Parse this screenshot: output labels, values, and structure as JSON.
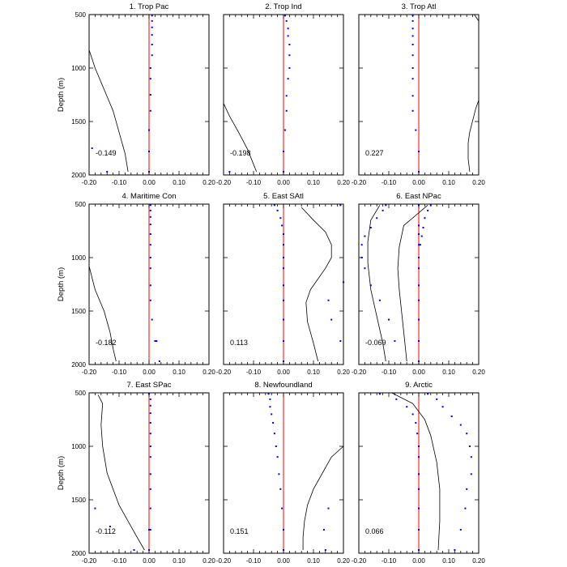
{
  "colors": {
    "zero_line": "#ff0000",
    "markers": "#0000ff",
    "curve": "#000000",
    "axis": "#000000"
  },
  "shared_axes": {
    "xlim": [
      -0.2,
      0.2
    ],
    "xticks": [
      -0.2,
      -0.1,
      0.0,
      0.1,
      0.2
    ],
    "xtick_labels": [
      "-0.20",
      "-0.10",
      "0.00",
      "0.10",
      "0.20"
    ],
    "ylim": [
      2000,
      500
    ],
    "yticks": [
      500,
      1000,
      1500,
      2000
    ],
    "ytick_labels": [
      "500",
      "1000",
      "1500",
      "2000"
    ],
    "ylabel": "Depth (m)"
  },
  "chart_data": [
    {
      "type": "line",
      "title": "1. Trop Pac",
      "annotation": "-0.149",
      "markers": {
        "x": [
          0.01,
          0.01,
          0.01,
          0.01,
          0.01,
          0.01,
          0.005,
          0.005,
          0.005,
          0.005,
          0.0,
          0.0,
          -0.19,
          -0.14,
          0.0
        ],
        "y": [
          510,
          560,
          620,
          690,
          780,
          880,
          1000,
          1100,
          1250,
          1400,
          1580,
          1780,
          1750,
          1970,
          1970
        ]
      },
      "curve": {
        "x": [
          -0.205,
          -0.18,
          -0.15,
          -0.12,
          -0.1,
          -0.08,
          -0.07
        ],
        "y": [
          830,
          1000,
          1200,
          1400,
          1600,
          1800,
          1970
        ]
      }
    },
    {
      "type": "line",
      "title": "2. Trop Ind",
      "annotation": "-0.198",
      "markers": {
        "x": [
          0.005,
          0.01,
          0.015,
          0.015,
          0.02,
          0.02,
          0.02,
          0.015,
          0.01,
          0.01,
          0.005,
          0.0,
          0.0,
          -0.18
        ],
        "y": [
          510,
          560,
          630,
          700,
          780,
          880,
          1000,
          1100,
          1260,
          1400,
          1580,
          1780,
          1970,
          1970
        ]
      },
      "curve": {
        "x": [
          -0.205,
          -0.18,
          -0.15,
          -0.12,
          -0.1,
          -0.09
        ],
        "y": [
          1330,
          1450,
          1600,
          1760,
          1900,
          1970
        ]
      }
    },
    {
      "type": "line",
      "title": "3. Trop Atl",
      "annotation": "0.227",
      "markers": {
        "x": [
          -0.02,
          -0.02,
          -0.02,
          -0.02,
          -0.02,
          -0.02,
          -0.02,
          -0.02,
          -0.02,
          -0.02,
          -0.01,
          0.0,
          0.0
        ],
        "y": [
          510,
          560,
          630,
          700,
          780,
          880,
          1000,
          1100,
          1260,
          1400,
          1580,
          1780,
          1970
        ]
      },
      "curve_segments": [
        {
          "x": [
            0.185,
            0.205
          ],
          "y": [
            500,
            560
          ]
        },
        {
          "x": [
            0.205,
            0.19,
            0.17,
            0.165,
            0.165,
            0.17
          ],
          "y": [
            1300,
            1380,
            1600,
            1700,
            1850,
            1970
          ]
        }
      ]
    },
    {
      "type": "line",
      "title": "4. Maritime Con",
      "annotation": "-0.182",
      "markers": {
        "x": [
          0.005,
          0.005,
          0.005,
          0.005,
          0.005,
          0.005,
          0.005,
          0.005,
          0.005,
          0.005,
          0.01,
          0.02,
          0.025,
          0.035
        ],
        "y": [
          510,
          560,
          620,
          690,
          780,
          880,
          1000,
          1100,
          1260,
          1400,
          1580,
          1780,
          1780,
          1970
        ]
      },
      "curve": {
        "x": [
          -0.205,
          -0.18,
          -0.15,
          -0.13,
          -0.12,
          -0.11
        ],
        "y": [
          1080,
          1300,
          1500,
          1700,
          1850,
          1970
        ]
      }
    },
    {
      "type": "line",
      "title": "5. East SAtl",
      "annotation": "0.113",
      "markers": {
        "x": [
          -0.03,
          -0.02,
          -0.01,
          -0.005,
          0.0,
          0.0,
          0.0,
          0.0,
          0.0,
          0.0,
          0.0,
          0.0,
          0.0,
          0.0,
          0.19,
          0.2,
          0.15,
          0.16,
          0.19
        ],
        "y": [
          510,
          560,
          630,
          700,
          780,
          880,
          1000,
          1100,
          1260,
          1400,
          1580,
          1780,
          1970,
          1970,
          510,
          1230,
          1400,
          1580,
          1780
        ]
      },
      "curve": {
        "x": [
          0.06,
          0.1,
          0.14,
          0.16,
          0.16,
          0.14,
          0.09,
          0.075,
          0.08,
          0.1,
          0.115
        ],
        "y": [
          530,
          650,
          760,
          880,
          1000,
          1100,
          1300,
          1420,
          1600,
          1800,
          1970
        ]
      }
    },
    {
      "type": "line",
      "title": "6. East NPac",
      "annotation": "-0.069",
      "markers": {
        "x": [
          -0.11,
          -0.12,
          -0.14,
          -0.16,
          -0.18,
          -0.19,
          -0.19,
          -0.18,
          -0.16,
          -0.13,
          -0.1,
          -0.08,
          0.0,
          0.0,
          0.0,
          0.0,
          0.0,
          0.0,
          0.0,
          0.0,
          0.0,
          0.0,
          0.0,
          0.04,
          0.03,
          0.02,
          0.015,
          0.01,
          0.005
        ],
        "y": [
          510,
          560,
          630,
          720,
          800,
          880,
          1000,
          1100,
          1260,
          1400,
          1580,
          1780,
          1780,
          1970,
          510,
          1000,
          1100,
          1260,
          1400,
          1580,
          880,
          780,
          700,
          510,
          560,
          630,
          720,
          800,
          880
        ]
      },
      "curve_segments": [
        {
          "x": [
            0.03,
            -0.05,
            -0.065,
            -0.07,
            -0.065,
            -0.05,
            -0.04
          ],
          "y": [
            510,
            700,
            900,
            1100,
            1300,
            1700,
            1970
          ]
        },
        {
          "x": [
            -0.13,
            -0.16,
            -0.17,
            -0.17,
            -0.16,
            -0.14,
            -0.12,
            -0.11
          ],
          "y": [
            510,
            650,
            850,
            1050,
            1300,
            1550,
            1800,
            1970
          ]
        }
      ]
    },
    {
      "type": "line",
      "title": "7. East SPac",
      "annotation": "-0.112",
      "markers": {
        "x": [
          0.0,
          0.005,
          0.005,
          0.005,
          0.005,
          0.005,
          0.005,
          0.005,
          0.005,
          0.005,
          0.005,
          0.005,
          0.0,
          -0.18,
          -0.13,
          -0.05,
          0.0
        ],
        "y": [
          510,
          560,
          620,
          690,
          780,
          880,
          1000,
          1100,
          1260,
          1400,
          1580,
          1780,
          1780,
          1580,
          1750,
          1970,
          1970
        ]
      },
      "curve": {
        "x": [
          -0.17,
          -0.155,
          -0.16,
          -0.155,
          -0.14,
          -0.12,
          -0.1,
          -0.07,
          -0.04,
          -0.015
        ],
        "y": [
          520,
          600,
          800,
          1000,
          1250,
          1400,
          1550,
          1700,
          1850,
          1970
        ]
      }
    },
    {
      "type": "line",
      "title": "8. Newfoundland",
      "annotation": "0.151",
      "markers": {
        "x": [
          -0.05,
          -0.045,
          -0.045,
          -0.04,
          -0.035,
          -0.03,
          -0.025,
          -0.02,
          -0.015,
          -0.01,
          -0.005,
          0.0,
          0.0,
          0.15,
          0.135,
          0.14,
          0.0
        ],
        "y": [
          510,
          560,
          630,
          700,
          780,
          880,
          1000,
          1100,
          1260,
          1400,
          1580,
          1780,
          1970,
          1580,
          1780,
          1970,
          1780
        ]
      },
      "curve": {
        "x": [
          0.2,
          0.16,
          0.13,
          0.1,
          0.08,
          0.07,
          0.065,
          0.065
        ],
        "y": [
          1000,
          1100,
          1250,
          1400,
          1550,
          1700,
          1850,
          1970
        ]
      }
    },
    {
      "type": "line",
      "title": "9. Arctic",
      "annotation": "0.066",
      "markers": {
        "x": [
          -0.13,
          -0.075,
          -0.04,
          -0.02,
          -0.01,
          -0.005,
          0.0,
          0.0,
          0.0,
          0.0,
          0.0,
          0.0,
          0.0,
          0.03,
          0.06,
          0.08,
          0.11,
          0.14,
          0.16,
          0.17,
          0.175,
          0.175,
          0.16,
          0.155,
          0.14,
          0.12,
          0.0
        ],
        "y": [
          510,
          560,
          630,
          700,
          780,
          880,
          1000,
          1100,
          1260,
          1400,
          1580,
          1780,
          1970,
          510,
          560,
          630,
          720,
          800,
          880,
          1000,
          1100,
          1260,
          1400,
          1580,
          1780,
          1970,
          1970
        ]
      },
      "curve": {
        "x": [
          -0.09,
          -0.02,
          0.02,
          0.04,
          0.06,
          0.07,
          0.07,
          0.065
        ],
        "y": [
          500,
          600,
          750,
          900,
          1150,
          1400,
          1700,
          1970
        ]
      }
    }
  ]
}
